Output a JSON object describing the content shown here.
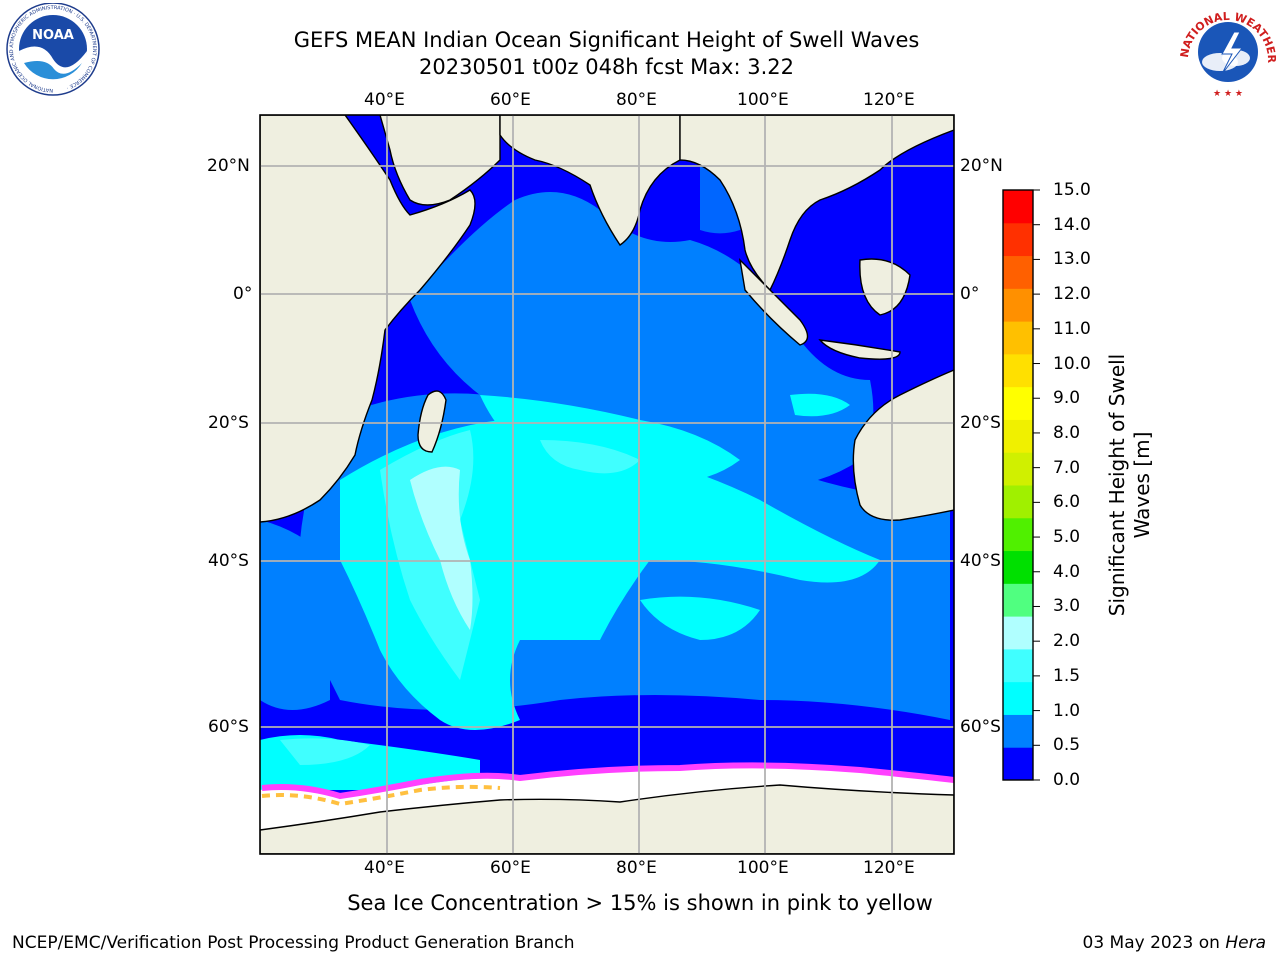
{
  "title": {
    "line1": "GEFS MEAN Indian Ocean Significant Height of Swell Waves",
    "line2": "20230501 t00z 048h fcst   Max: 3.22"
  },
  "logos": {
    "noaa_text": "NOAA",
    "noaa_ring": "NATIONAL OCEANIC AND ATMOSPHERIC ADMINISTRATION · U.S. DEPARTMENT OF COMMERCE ·",
    "nws_ring": "NATIONAL WEATHER SERVICE"
  },
  "map": {
    "lon_labels_top": [
      "40°E",
      "60°E",
      "80°E",
      "100°E",
      "120°E"
    ],
    "lon_labels_bottom": [
      "40°E",
      "60°E",
      "80°E",
      "100°E",
      "120°E"
    ],
    "lat_labels_left": [
      "20°N",
      "0°",
      "20°S",
      "40°S",
      "60°S"
    ],
    "lat_labels_right": [
      "20°N",
      "0°",
      "20°S",
      "40°S",
      "60°S"
    ],
    "colors": {
      "ocean_low": "#0000ff",
      "ocean_mid": "#0080ff",
      "ocean_high": "#00ffff",
      "ocean_peak": "#b0ffff",
      "land": "#efefe0",
      "ice_pink": "#ff40ff",
      "ice_orange": "#ffc040",
      "grid": "#b3b3b3"
    },
    "note": "Sea Ice Concentration > 15% is shown in pink to yellow"
  },
  "colorbar": {
    "label_line1": "Significant Height of Swell",
    "label_line2": "Waves [m]",
    "ticks": [
      "15.0",
      "14.0",
      "13.0",
      "12.0",
      "11.0",
      "10.0",
      "9.0",
      "8.0",
      "7.0",
      "6.0",
      "5.0",
      "4.0",
      "3.0",
      "2.0",
      "1.5",
      "1.0",
      "0.5",
      "0.0"
    ],
    "colors_bottom_to_top": [
      "#0000ff",
      "#0080ff",
      "#00ffff",
      "#40ffff",
      "#b0ffff",
      "#50ff80",
      "#00e000",
      "#50f000",
      "#a0f000",
      "#d0f000",
      "#f0f000",
      "#ffff00",
      "#ffe000",
      "#ffc000",
      "#ff9000",
      "#ff6000",
      "#ff3000",
      "#ff0000"
    ]
  },
  "footer": {
    "left": "NCEP/EMC/Verification Post Processing Product Generation Branch",
    "right_date": "03 May 2023 on ",
    "right_host": "Hera"
  }
}
